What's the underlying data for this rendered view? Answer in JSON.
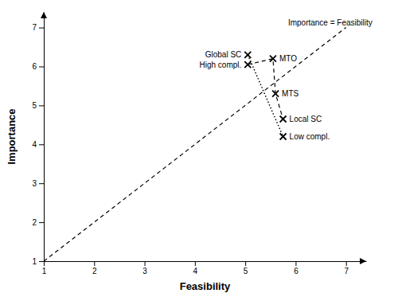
{
  "chart_data": {
    "type": "scatter",
    "xlabel": "Feasibility",
    "ylabel": "Importance",
    "xlim": [
      1.0,
      7.4
    ],
    "ylim": [
      1.0,
      7.4
    ],
    "xticks": [
      1,
      2,
      3,
      4,
      5,
      6,
      7
    ],
    "yticks": [
      1,
      2,
      3,
      4,
      5,
      6,
      7
    ],
    "grid": false,
    "series": [
      {
        "type": "line",
        "line_style": "dashed",
        "color": "#000000",
        "x": [
          1,
          7
        ],
        "values": [
          1,
          7
        ]
      },
      {
        "type": "line",
        "line_style": "dotted",
        "color": "#000000",
        "x": [
          5.05,
          5.75
        ],
        "values": [
          6.3,
          4.2
        ]
      },
      {
        "type": "line",
        "line_style": "dashed",
        "color": "#000000",
        "x": [
          5.05,
          5.55,
          5.6,
          5.75
        ],
        "values": [
          6.05,
          6.2,
          5.3,
          4.65
        ]
      },
      {
        "type": "scatter",
        "marker": "x",
        "color": "#000000",
        "x": [
          5.05,
          5.05,
          5.55,
          5.6,
          5.75,
          5.75
        ],
        "values": [
          6.3,
          6.05,
          6.2,
          5.3,
          4.65,
          4.2
        ],
        "labels": [
          "Global SC",
          "High compl.",
          "MTO",
          "MTS",
          "Local SC",
          "Low compl."
        ]
      }
    ],
    "annotations": [
      {
        "text": "Importance = Feasibility",
        "x": 5.85,
        "y": 7.05
      }
    ]
  }
}
